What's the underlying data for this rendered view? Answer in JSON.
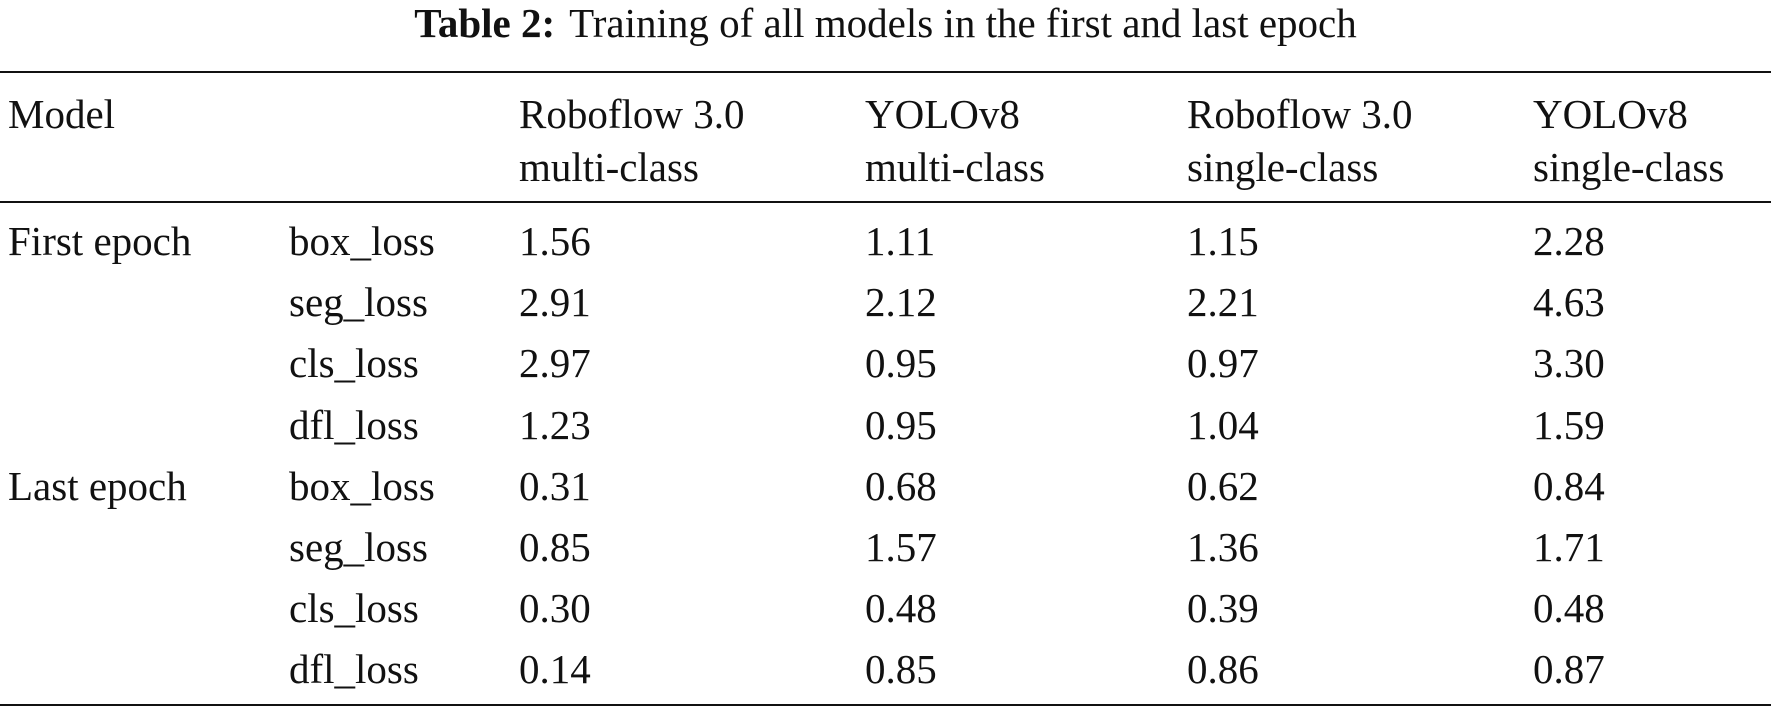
{
  "caption": {
    "label": "Table 2:",
    "text": "Training of all models in the first and last epoch"
  },
  "table": {
    "header": {
      "model": "Model",
      "columns": [
        {
          "line1": "Roboflow 3.0",
          "line2": "multi-class"
        },
        {
          "line1": "YOLOv8",
          "line2": "multi-class"
        },
        {
          "line1": "Roboflow 3.0",
          "line2": "single-class"
        },
        {
          "line1": "YOLOv8",
          "line2": "single-class"
        }
      ]
    },
    "rows": [
      {
        "group": "First epoch",
        "metric": "box_loss",
        "values": [
          "1.56",
          "1.11",
          "1.15",
          "2.28"
        ]
      },
      {
        "group": "",
        "metric": "seg_loss",
        "values": [
          "2.91",
          "2.12",
          "2.21",
          "4.63"
        ]
      },
      {
        "group": "",
        "metric": "cls_loss",
        "values": [
          "2.97",
          "0.95",
          "0.97",
          "3.30"
        ]
      },
      {
        "group": "",
        "metric": "dfl_loss",
        "values": [
          "1.23",
          "0.95",
          "1.04",
          "1.59"
        ]
      },
      {
        "group": "Last epoch",
        "metric": "box_loss",
        "values": [
          "0.31",
          "0.68",
          "0.62",
          "0.84"
        ]
      },
      {
        "group": "",
        "metric": "seg_loss",
        "values": [
          "0.85",
          "1.57",
          "1.36",
          "1.71"
        ]
      },
      {
        "group": "",
        "metric": "cls_loss",
        "values": [
          "0.30",
          "0.48",
          "0.39",
          "0.48"
        ]
      },
      {
        "group": "",
        "metric": "dfl_loss",
        "values": [
          "0.14",
          "0.85",
          "0.86",
          "0.87"
        ]
      }
    ]
  }
}
